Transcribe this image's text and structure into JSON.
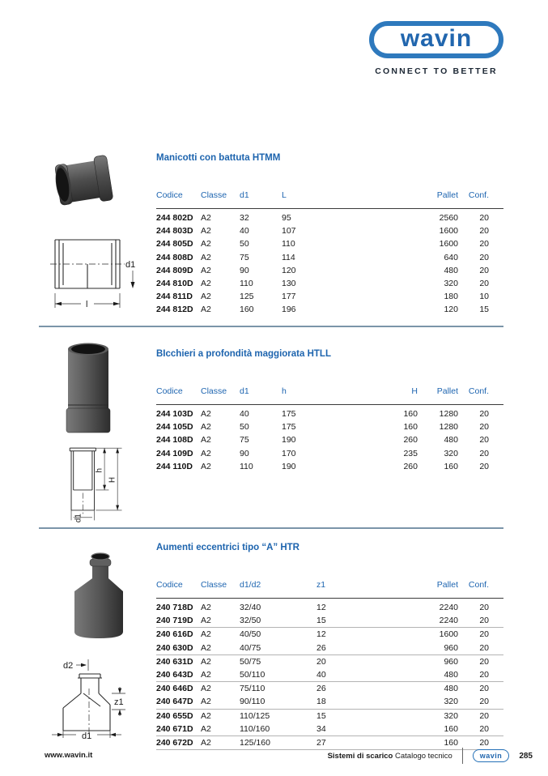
{
  "header": {
    "logo_text": "wavin",
    "tagline": "CONNECT TO BETTER"
  },
  "sections": [
    {
      "title": "Manicotti con battuta HTMM",
      "columns": [
        "Codice",
        "Classe",
        "d1",
        "L",
        "Pallet",
        "Conf."
      ],
      "rows": [
        [
          "244 802D",
          "A2",
          "32",
          "95",
          "2560",
          "20"
        ],
        [
          "244 803D",
          "A2",
          "40",
          "107",
          "1600",
          "20"
        ],
        [
          "244 805D",
          "A2",
          "50",
          "110",
          "1600",
          "20"
        ],
        [
          "244 808D",
          "A2",
          "75",
          "114",
          "640",
          "20"
        ],
        [
          "244 809D",
          "A2",
          "90",
          "120",
          "480",
          "20"
        ],
        [
          "244 810D",
          "A2",
          "110",
          "130",
          "320",
          "20"
        ],
        [
          "244 811D",
          "A2",
          "125",
          "177",
          "180",
          "10"
        ],
        [
          "244 812D",
          "A2",
          "160",
          "196",
          "120",
          "15"
        ]
      ],
      "drawing_labels": {
        "d1": "d1",
        "l": "l"
      }
    },
    {
      "title": "BIcchieri a profondità maggiorata HTLL",
      "columns": [
        "Codice",
        "Classe",
        "d1",
        "h",
        "H",
        "Pallet",
        "Conf."
      ],
      "rows": [
        [
          "244 103D",
          "A2",
          "40",
          "175",
          "160",
          "1280",
          "20"
        ],
        [
          "244 105D",
          "A2",
          "50",
          "175",
          "160",
          "1280",
          "20"
        ],
        [
          "244 108D",
          "A2",
          "75",
          "190",
          "260",
          "480",
          "20"
        ],
        [
          "244 109D",
          "A2",
          "90",
          "170",
          "235",
          "320",
          "20"
        ],
        [
          "244 110D",
          "A2",
          "110",
          "190",
          "260",
          "160",
          "20"
        ]
      ],
      "drawing_labels": {
        "h": "h",
        "H": "H",
        "d1": "d1"
      }
    },
    {
      "title": "Aumenti eccentrici tipo “A” HTR",
      "columns": [
        "Codice",
        "Classe",
        "d1/d2",
        "z1",
        "Pallet",
        "Conf."
      ],
      "rows": [
        [
          "240 718D",
          "A2",
          "32/40",
          "12",
          "2240",
          "20"
        ],
        [
          "240 719D",
          "A2",
          "32/50",
          "15",
          "2240",
          "20"
        ],
        [
          "240 616D",
          "A2",
          "40/50",
          "12",
          "1600",
          "20"
        ],
        [
          "240 630D",
          "A2",
          "40/75",
          "26",
          "960",
          "20"
        ],
        [
          "240 631D",
          "A2",
          "50/75",
          "20",
          "960",
          "20"
        ],
        [
          "240 643D",
          "A2",
          "50/110",
          "40",
          "480",
          "20"
        ],
        [
          "240 646D",
          "A2",
          "75/110",
          "26",
          "480",
          "20"
        ],
        [
          "240 647D",
          "A2",
          "90/110",
          "18",
          "320",
          "20"
        ],
        [
          "240 655D",
          "A2",
          "110/125",
          "15",
          "320",
          "20"
        ],
        [
          "240 671D",
          "A2",
          "110/160",
          "34",
          "160",
          "20"
        ],
        [
          "240 672D",
          "A2",
          "125/160",
          "27",
          "160",
          "20"
        ]
      ],
      "drawing_labels": {
        "d2": "d2",
        "z1": "z1",
        "d1": "d1"
      }
    }
  ],
  "footer": {
    "website": "www.wavin.it",
    "doc_title_bold": "Sistemi di scarico",
    "doc_title_regular": "Catalogo tecnico",
    "logo_text": "wavin",
    "page_number": "285"
  },
  "colors": {
    "brand_blue": "#2166ae",
    "heading_blue": "#1d64ae",
    "divider_blue_gray": "#7b95a9",
    "text_dark": "#1a1a1a"
  }
}
